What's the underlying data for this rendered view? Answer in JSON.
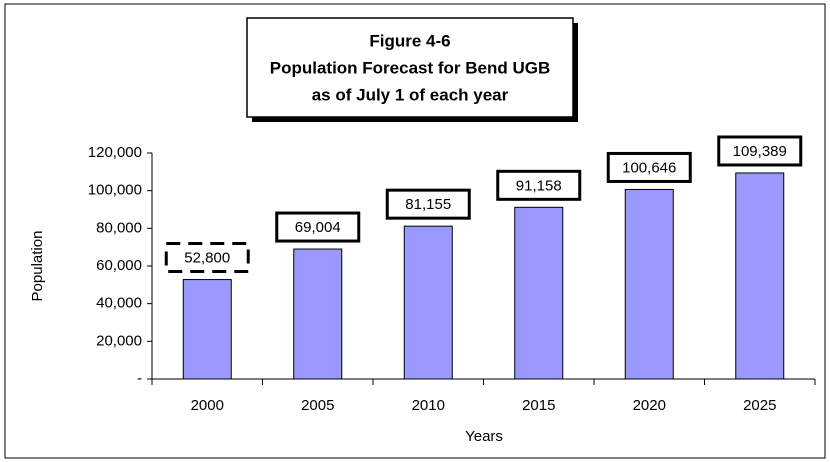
{
  "chart_data": {
    "type": "bar",
    "title": [
      "Figure 4-6",
      "Population Forecast for Bend UGB",
      "as of July 1 of each year"
    ],
    "x_label": "Years",
    "y_label": "Population",
    "categories": [
      "2000",
      "2005",
      "2010",
      "2015",
      "2020",
      "2025"
    ],
    "values": [
      52800,
      69004,
      81155,
      91158,
      100646,
      109389
    ],
    "value_labels": [
      "52,800",
      "69,004",
      "81,155",
      "91,158",
      "100,646",
      "109,389"
    ],
    "color": "#9999ff",
    "ylim": [
      0,
      120000
    ],
    "yticks": [
      {
        "value": 0,
        "label": "-"
      },
      {
        "value": 20000,
        "label": "20,000"
      },
      {
        "value": 40000,
        "label": "40,000"
      },
      {
        "value": 60000,
        "label": "60,000"
      },
      {
        "value": 80000,
        "label": "80,000"
      },
      {
        "value": 100000,
        "label": "100,000"
      },
      {
        "value": 120000,
        "label": "120,000"
      }
    ],
    "grid": false
  }
}
